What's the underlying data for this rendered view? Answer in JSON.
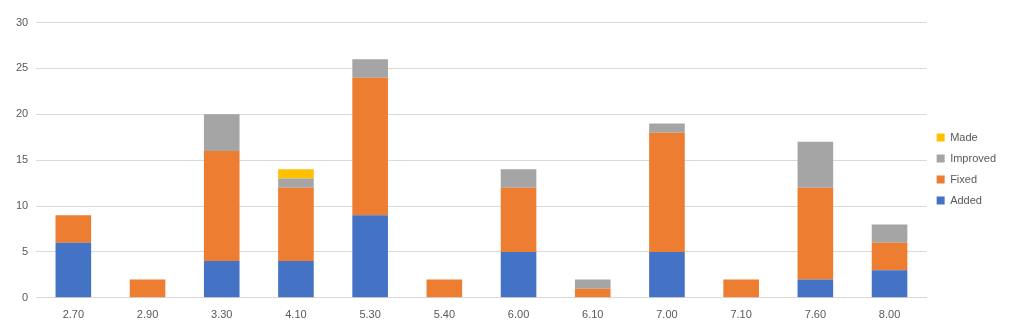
{
  "chart_data": {
    "type": "bar",
    "stacked": true,
    "categories": [
      "2.70",
      "2.90",
      "3.30",
      "4.10",
      "5.30",
      "5.40",
      "6.00",
      "6.10",
      "7.00",
      "7.10",
      "7.60",
      "8.00"
    ],
    "series": [
      {
        "name": "Added",
        "color": "#4472c4",
        "values": [
          6,
          null,
          4,
          4,
          9,
          null,
          5,
          null,
          5,
          null,
          2,
          3
        ]
      },
      {
        "name": "Fixed",
        "color": "#ed7d31",
        "values": [
          3,
          2,
          12,
          8,
          15,
          2,
          7,
          1,
          13,
          2,
          10,
          3
        ]
      },
      {
        "name": "Improved",
        "color": "#a5a5a5",
        "values": [
          null,
          null,
          4,
          1,
          2,
          null,
          2,
          1,
          1,
          null,
          5,
          2
        ]
      },
      {
        "name": "Made",
        "color": "#ffc000",
        "values": [
          null,
          null,
          null,
          1,
          null,
          null,
          null,
          null,
          null,
          null,
          null,
          null
        ]
      }
    ],
    "ylim": [
      0,
      30
    ],
    "yticks": [
      0,
      5,
      10,
      15,
      20,
      25,
      30
    ],
    "grid": "y",
    "legend": "right"
  }
}
